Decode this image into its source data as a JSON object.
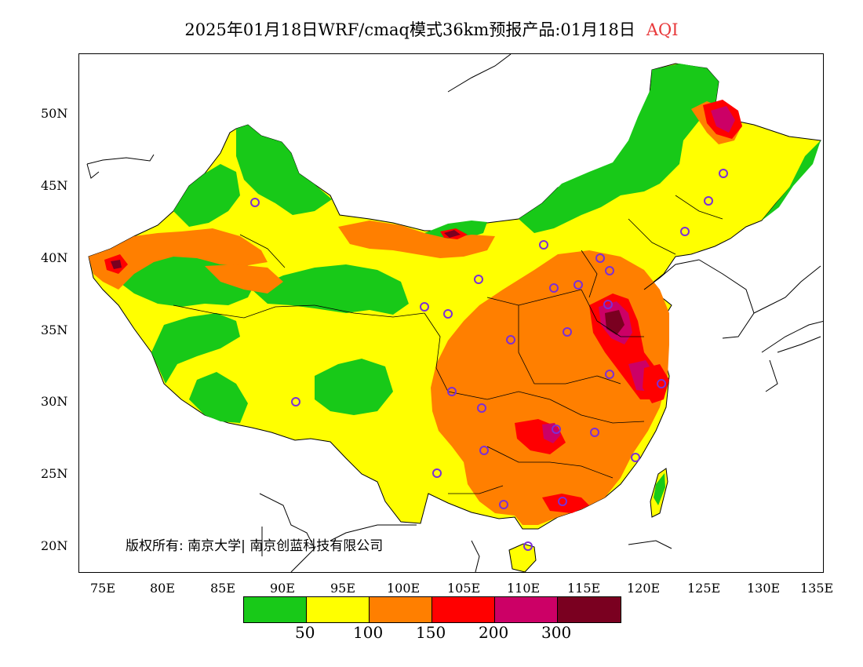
{
  "title": {
    "main": "2025年01月18日WRF/cmaq模式36km预报产品:01月18日",
    "variable": "AQI"
  },
  "axes": {
    "y_labels": [
      "50N",
      "45N",
      "40N",
      "35N",
      "30N",
      "25N",
      "20N"
    ],
    "x_labels": [
      "75E",
      "80E",
      "85E",
      "90E",
      "95E",
      "100E",
      "105E",
      "110E",
      "115E",
      "120E",
      "125E",
      "130E",
      "135E"
    ]
  },
  "copyright": "版权所有: 南京大学| 南京创蓝科技有限公司",
  "legend": {
    "colors": [
      "#18c918",
      "#ffff00",
      "#ff7f00",
      "#ff0000",
      "#cc0066",
      "#7a0020"
    ],
    "labels": [
      "50",
      "100",
      "150",
      "200",
      "300"
    ]
  },
  "map_colors": {
    "green": "#18c918",
    "yellow": "#ffff00",
    "orange": "#ff7f00",
    "red": "#ff0000",
    "magenta": "#cc0066",
    "maroon": "#7a0020",
    "station_marker": "#7b2fd6"
  }
}
